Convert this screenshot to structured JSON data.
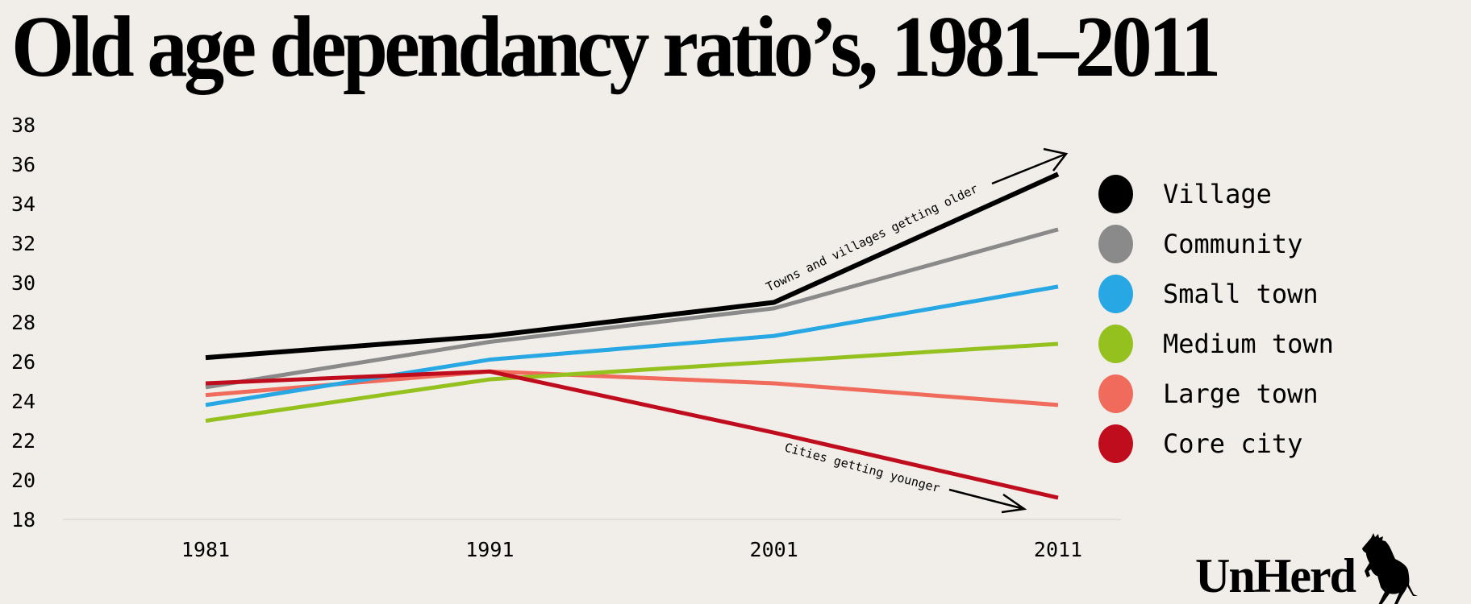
{
  "title": "Old age dependancy ratio’s, 1981–2011",
  "logo": {
    "text": "UnHerd",
    "icon": "cow-icon"
  },
  "annotations": {
    "older": "Towns and villages getting older",
    "younger": "Cities getting younger"
  },
  "chart_data": {
    "type": "line",
    "title": "Old age dependancy ratio’s, 1981–2011",
    "xlabel": "",
    "ylabel": "",
    "x": [
      "1981",
      "1991",
      "2001",
      "2011"
    ],
    "ylim": [
      18,
      38
    ],
    "yticks": [
      "38",
      "36",
      "34",
      "32",
      "30",
      "28",
      "26",
      "24",
      "22",
      "20",
      "18"
    ],
    "grid": false,
    "legend_position": "right",
    "series": [
      {
        "name": "Village",
        "color": "#000000",
        "values": [
          26.2,
          27.3,
          29.0,
          35.5
        ]
      },
      {
        "name": "Community",
        "color": "#8a8a8a",
        "values": [
          24.7,
          27.0,
          28.7,
          32.7
        ]
      },
      {
        "name": "Small town",
        "color": "#27a7e3",
        "values": [
          23.8,
          26.1,
          27.3,
          29.8
        ]
      },
      {
        "name": "Medium town",
        "color": "#95c11f",
        "values": [
          23.0,
          25.1,
          26.0,
          26.9
        ]
      },
      {
        "name": "Large town",
        "color": "#f06b5b",
        "values": [
          24.3,
          25.5,
          24.9,
          23.8
        ]
      },
      {
        "name": "Core city",
        "color": "#c00d1e",
        "values": [
          24.9,
          25.5,
          22.4,
          19.1
        ]
      }
    ]
  }
}
